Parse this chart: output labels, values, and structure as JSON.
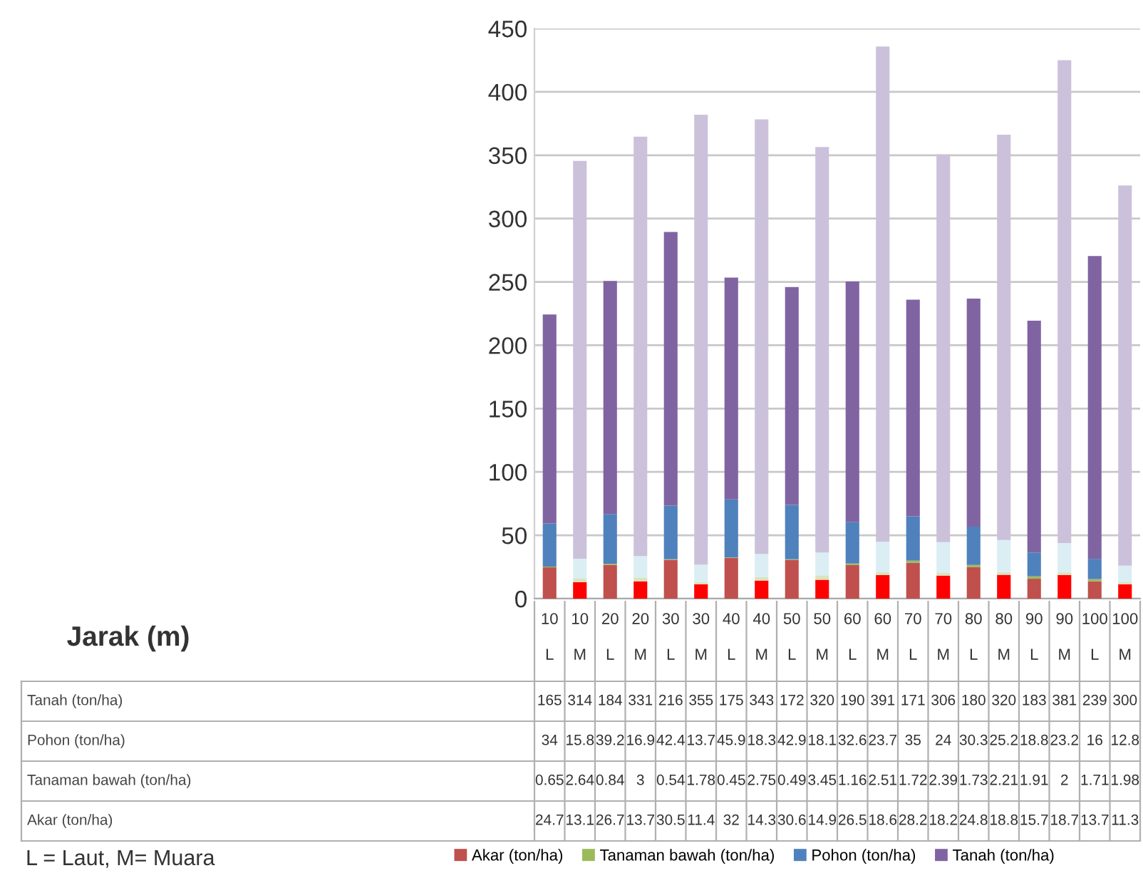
{
  "chart_data": {
    "type": "bar",
    "stacked": true,
    "categories": [
      "10\nL",
      "10\nM",
      "20\nL",
      "20\nM",
      "30\nL",
      "30\nM",
      "40\nL",
      "40\nM",
      "50\nL",
      "50\nM",
      "60\nL",
      "60\nM",
      "70\nL",
      "70\nM",
      "80\nL",
      "80\nM",
      "90\nL",
      "90\nM",
      "100\nL",
      "100\nM"
    ],
    "series": [
      {
        "name": "Akar (ton/ha)",
        "colors": [
          "#c0504d",
          "#ff0000",
          "#c0504d",
          "#ff0000",
          "#c0504d",
          "#ff0000",
          "#c0504d",
          "#ff0000",
          "#c0504d",
          "#ff0000",
          "#c0504d",
          "#ff0000",
          "#c0504d",
          "#ff0000",
          "#c0504d",
          "#ff0000",
          "#c0504d",
          "#ff0000",
          "#c0504d",
          "#ff0000"
        ],
        "values": [
          24.7,
          13.1,
          26.7,
          13.7,
          30.5,
          11.4,
          32,
          14.3,
          30.6,
          14.9,
          26.5,
          18.6,
          28.2,
          18.2,
          24.8,
          18.8,
          15.7,
          18.7,
          13.7,
          11.3
        ]
      },
      {
        "name": "Tanaman bawah (ton/ha)",
        "colors": [
          "#9bbb59",
          "#d7e4bd",
          "#9bbb59",
          "#d7e4bd",
          "#9bbb59",
          "#d7e4bd",
          "#9bbb59",
          "#d7e4bd",
          "#9bbb59",
          "#d7e4bd",
          "#9bbb59",
          "#d7e4bd",
          "#9bbb59",
          "#d7e4bd",
          "#9bbb59",
          "#d7e4bd",
          "#9bbb59",
          "#d7e4bd",
          "#9bbb59",
          "#d7e4bd"
        ],
        "values": [
          0.65,
          2.64,
          0.84,
          3,
          0.54,
          1.78,
          0.45,
          2.75,
          0.49,
          3.45,
          1.16,
          2.51,
          1.72,
          2.39,
          1.73,
          2.21,
          1.91,
          2,
          1.71,
          1.98
        ]
      },
      {
        "name": "Pohon (ton/ha)",
        "colors": [
          "#4f81bd",
          "#dbeef4",
          "#4f81bd",
          "#dbeef4",
          "#4f81bd",
          "#dbeef4",
          "#4f81bd",
          "#dbeef4",
          "#4f81bd",
          "#dbeef4",
          "#4f81bd",
          "#dbeef4",
          "#4f81bd",
          "#dbeef4",
          "#4f81bd",
          "#dbeef4",
          "#4f81bd",
          "#dbeef4",
          "#4f81bd",
          "#dbeef4"
        ],
        "values": [
          34,
          15.8,
          39.2,
          16.9,
          42.4,
          13.7,
          45.9,
          18.3,
          42.9,
          18.1,
          32.6,
          23.7,
          35,
          24,
          30.3,
          25.2,
          18.8,
          23.2,
          16,
          12.8
        ]
      },
      {
        "name": "Tanah (ton/ha)",
        "colors": [
          "#8064a2",
          "#ccc1da",
          "#8064a2",
          "#ccc1da",
          "#8064a2",
          "#ccc1da",
          "#8064a2",
          "#ccc1da",
          "#8064a2",
          "#ccc1da",
          "#8064a2",
          "#ccc1da",
          "#8064a2",
          "#ccc1da",
          "#8064a2",
          "#ccc1da",
          "#8064a2",
          "#ccc1da",
          "#8064a2",
          "#ccc1da"
        ],
        "values": [
          165,
          314,
          184,
          331,
          216,
          355,
          175,
          343,
          172,
          320,
          190,
          391,
          171,
          306,
          180,
          320,
          183,
          381,
          239,
          300
        ]
      }
    ],
    "ylim": [
      0,
      450
    ],
    "yticks": [
      0,
      50,
      100,
      150,
      200,
      250,
      300,
      350,
      400,
      450
    ],
    "grid": "y",
    "data_labels": true,
    "legend": "bottom",
    "annotations": [
      "Jarak (m)",
      "L = Laut, M= Muara"
    ]
  }
}
